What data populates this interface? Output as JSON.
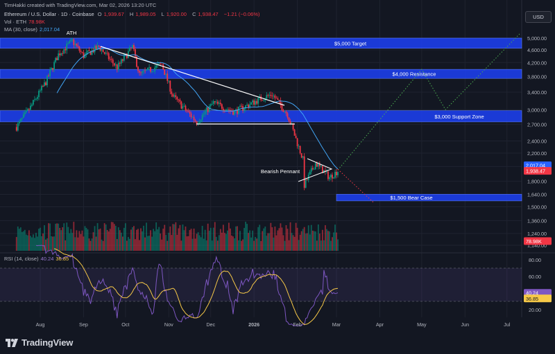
{
  "header": {
    "created_by": "TimHakki created with TradingView.com, Mar 02, 2026 13:20 UTC",
    "symbol": "Ethereum / U.S. Dollar · 1D · Coinbase",
    "ohlc": [
      {
        "k": "O",
        "v": "1,939.67"
      },
      {
        "k": "H",
        "v": "1,989.05"
      },
      {
        "k": "L",
        "v": "1,920.00"
      },
      {
        "k": "C",
        "v": "1,938.47"
      }
    ],
    "change": "−1.21 (−0.06%)",
    "vol_label": "Vol · ETH",
    "vol_value": "78.98K",
    "ma_label": "MA (30, close)",
    "ma_value": "2,017.04",
    "rsi_label": "RSI (14, close)",
    "rsi_value": "40.24",
    "rsi_ma_value": "36.85"
  },
  "currency_button": "USD",
  "logo": "TradingView",
  "colors": {
    "up": "#089981",
    "down": "#f23645",
    "zone": "#1c3ee6",
    "ma": "#42a5f5",
    "rsi": "#7e57c2",
    "rsi_ma": "#f7c948",
    "projection_up": "#4caf50",
    "projection_down": "#f23645"
  },
  "chart_data": {
    "type": "candlestick",
    "symbol": "ETH/USD",
    "timeframe": "1D",
    "x_ticks": [
      "Aug",
      "Sep",
      "Oct",
      "Nov",
      "Dec",
      "2026",
      "Feb",
      "Mar",
      "Apr",
      "May",
      "Jun",
      "Jul"
    ],
    "y_scale": "log",
    "y_ticks": [
      5000,
      4600,
      4200,
      3800,
      3400,
      3000,
      2700,
      2400,
      2200,
      2000,
      1800,
      1640,
      1500,
      1360,
      1240,
      1140
    ],
    "y_tick_labels": [
      "5,000.00",
      "4,600.00",
      "4,200.00",
      "3,800.00",
      "3,400.00",
      "3,000.00",
      "2,700.00",
      "2,400.00",
      "2,200.00",
      "2,000.00",
      "1,800.00",
      "1,640.00",
      "1,500.00",
      "1,360.00",
      "1,240.00",
      "1,140.00"
    ],
    "price_labels": {
      "ma": "2,017.04",
      "last": "1,938.47",
      "volume": "78.98K",
      "rsi": "40.24",
      "rsi_ma": "36.85"
    },
    "zones": [
      {
        "label": "$5,000 Target",
        "low": 4650,
        "high": 5000
      },
      {
        "label": "$4,000 Resistance",
        "low": 3750,
        "high": 4000
      },
      {
        "label": "$3,000 Support Zone",
        "low": 2750,
        "high": 2980
      },
      {
        "label": "$1,500 Bear Case",
        "low": 1565,
        "high": 1640
      }
    ],
    "annotations": [
      {
        "label": "ATH"
      },
      {
        "label": "Bearish Pennant"
      }
    ],
    "price_path": [
      {
        "x": "Jul 15",
        "y": 2650
      },
      {
        "x": "Jul 25",
        "y": 3050
      },
      {
        "x": "Aug 5",
        "y": 3650
      },
      {
        "x": "Aug 14",
        "y": 4450
      },
      {
        "x": "Aug 24",
        "y": 4900
      },
      {
        "x": "Sep 1",
        "y": 4400
      },
      {
        "x": "Sep 12",
        "y": 4700
      },
      {
        "x": "Sep 25",
        "y": 4050
      },
      {
        "x": "Oct 6",
        "y": 4700
      },
      {
        "x": "Oct 11",
        "y": 3850
      },
      {
        "x": "Oct 27",
        "y": 4150
      },
      {
        "x": "Nov 4",
        "y": 3300
      },
      {
        "x": "Nov 21",
        "y": 2750
      },
      {
        "x": "Dec 3",
        "y": 3150
      },
      {
        "x": "Dec 18",
        "y": 2950
      },
      {
        "x": "Jan 6",
        "y": 3250
      },
      {
        "x": "Jan 14",
        "y": 3350
      },
      {
        "x": "Jan 25",
        "y": 2900
      },
      {
        "x": "Feb 5",
        "y": 2100
      },
      {
        "x": "Feb 6",
        "y": 1750
      },
      {
        "x": "Feb 14",
        "y": 2050
      },
      {
        "x": "Feb 24",
        "y": 1850
      },
      {
        "x": "Mar 2",
        "y": 1938.47
      }
    ],
    "projection_bull": [
      {
        "x": "Mar 2",
        "y": 1950
      },
      {
        "x": "May 1",
        "y": 4000
      },
      {
        "x": "May 18",
        "y": 3000
      },
      {
        "x": "Jul 10",
        "y": 5150
      }
    ],
    "projection_bear": [
      {
        "x": "Mar 2",
        "y": 1960
      },
      {
        "x": "Mar 28",
        "y": 1540
      }
    ],
    "rsi": {
      "ylim": [
        0,
        100
      ],
      "ticks": [
        80,
        60,
        40,
        20
      ],
      "band": [
        30,
        70
      ],
      "last": 40.24,
      "ma_last": 36.85
    },
    "grid": true
  }
}
